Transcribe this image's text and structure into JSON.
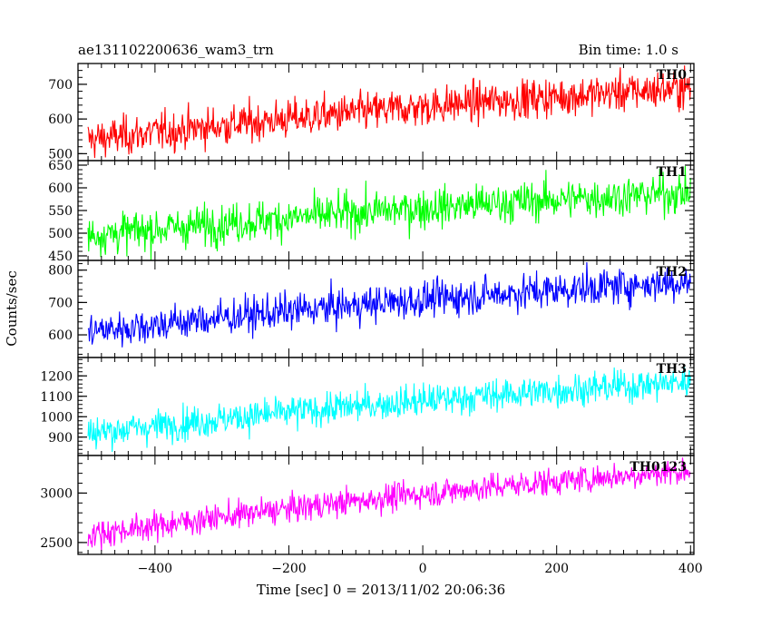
{
  "chart_data": {
    "type": "line",
    "title": "ae131102200636_wam3_trn",
    "bin_time_label": "Bin time: 1.0 s",
    "xlabel": "Time [sec] 0 = 2013/11/02 20:06:36",
    "ylabel": "Counts/sec",
    "xlim": [
      -515,
      405
    ],
    "x_ticks": [
      -400,
      -200,
      0,
      200,
      400
    ],
    "x_tick_labels": [
      "−400",
      "−200",
      "0",
      "200",
      "400"
    ],
    "x_range": [
      -500,
      400
    ],
    "grid": false,
    "panels": [
      {
        "name": "TH0",
        "color": "#ff0000",
        "ylim": [
          480,
          760
        ],
        "y_ticks": [
          500,
          600,
          700
        ],
        "y_tick_labels": [
          "500",
          "600",
          "700"
        ],
        "trend_start": 540,
        "trend_end": 690,
        "noise": 28
      },
      {
        "name": "TH1",
        "color": "#00ff00",
        "ylim": [
          440,
          660
        ],
        "y_ticks": [
          450,
          500,
          550,
          600,
          650
        ],
        "y_tick_labels": [
          "450",
          "500",
          "550",
          "600",
          "650"
        ],
        "trend_start": 495,
        "trend_end": 590,
        "noise": 22
      },
      {
        "name": "TH2",
        "color": "#0000ff",
        "ylim": [
          530,
          830
        ],
        "y_ticks": [
          600,
          700,
          800
        ],
        "y_tick_labels": [
          "600",
          "700",
          "800"
        ],
        "trend_start": 610,
        "trend_end": 765,
        "noise": 28
      },
      {
        "name": "TH3",
        "color": "#00ffff",
        "ylim": [
          810,
          1290
        ],
        "y_ticks": [
          900,
          1000,
          1100,
          1200
        ],
        "y_tick_labels": [
          "900",
          "1000",
          "1100",
          "1200"
        ],
        "trend_start": 920,
        "trend_end": 1170,
        "noise": 40
      },
      {
        "name": "TH0123",
        "color": "#ff00ff",
        "ylim": [
          2380,
          3380
        ],
        "y_ticks": [
          2500,
          3000
        ],
        "y_tick_labels": [
          "2500",
          "3000"
        ],
        "trend_start": 2580,
        "trend_end": 3230,
        "noise": 70
      }
    ]
  }
}
